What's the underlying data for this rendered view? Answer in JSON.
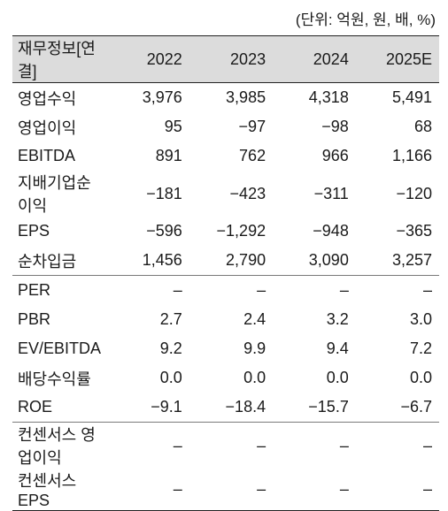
{
  "unit_note": "(단위: 억원, 원, 배, %)",
  "header": {
    "label": "재무정보[연결]",
    "years": [
      "2022",
      "2023",
      "2024",
      "2025E"
    ]
  },
  "rows": [
    {
      "label": "영업수익",
      "values": [
        "3,976",
        "3,985",
        "4,318",
        "5,491"
      ]
    },
    {
      "label": "영업이익",
      "values": [
        "95",
        "−97",
        "−98",
        "68"
      ]
    },
    {
      "label": "EBITDA",
      "values": [
        "891",
        "762",
        "966",
        "1,166"
      ]
    },
    {
      "label": "지배기업순이익",
      "values": [
        "−181",
        "−423",
        "−311",
        "−120"
      ]
    },
    {
      "label": "EPS",
      "values": [
        "−596",
        "−1,292",
        "−948",
        "−365"
      ]
    },
    {
      "label": "순차입금",
      "values": [
        "1,456",
        "2,790",
        "3,090",
        "3,257"
      ]
    },
    {
      "label": "PER",
      "values": [
        "–",
        "–",
        "–",
        "–"
      ]
    },
    {
      "label": "PBR",
      "values": [
        "2.7",
        "2.4",
        "3.2",
        "3.0"
      ]
    },
    {
      "label": "EV/EBITDA",
      "values": [
        "9.2",
        "9.9",
        "9.4",
        "7.2"
      ]
    },
    {
      "label": "배당수익률",
      "values": [
        "0.0",
        "0.0",
        "0.0",
        "0.0"
      ]
    },
    {
      "label": "ROE",
      "values": [
        "−9.1",
        "−18.4",
        "−15.7",
        "−6.7"
      ]
    },
    {
      "label": "컨센서스 영업이익",
      "values": [
        "–",
        "–",
        "–",
        "–"
      ]
    },
    {
      "label": "컨센서스 EPS",
      "values": [
        "–",
        "–",
        "–",
        "–"
      ]
    }
  ]
}
